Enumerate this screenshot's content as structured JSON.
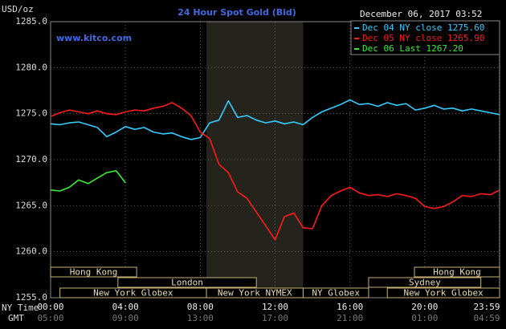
{
  "chart_data": {
    "type": "line",
    "title": "24 Hour Spot Gold (Bid)",
    "y_unit": "USD/oz",
    "website": "www.kitco.com",
    "timestamp": "December 06, 2017 03:52",
    "x_axis_label": "NY Time",
    "gmt_axis_label": "GMT",
    "x": [
      0,
      0.5,
      1,
      1.5,
      2,
      2.5,
      3,
      3.5,
      4,
      4.5,
      5,
      5.5,
      6,
      6.5,
      7,
      7.5,
      8,
      8.5,
      9,
      9.5,
      10,
      10.5,
      11,
      11.5,
      12,
      12.5,
      13,
      13.5,
      14,
      14.5,
      15,
      15.5,
      16,
      16.5,
      17,
      17.5,
      18,
      18.5,
      19,
      19.5,
      20,
      20.5,
      21,
      21.5,
      22,
      22.5,
      23,
      23.5,
      24
    ],
    "series": [
      {
        "name": "Dec 04 NY close 1275.60",
        "color": "#33ccff",
        "values": [
          1273.9,
          1273.8,
          1274.0,
          1274.1,
          1273.8,
          1273.5,
          1272.5,
          1273.0,
          1273.6,
          1273.3,
          1273.5,
          1273.0,
          1272.8,
          1272.9,
          1272.5,
          1272.2,
          1272.4,
          1274.0,
          1274.3,
          1276.4,
          1274.6,
          1274.8,
          1274.3,
          1274.0,
          1274.2,
          1273.9,
          1274.1,
          1273.8,
          1274.6,
          1275.2,
          1275.6,
          1276.0,
          1276.5,
          1276.0,
          1276.1,
          1275.8,
          1276.2,
          1275.9,
          1276.1,
          1275.4,
          1275.6,
          1275.9,
          1275.5,
          1275.6,
          1275.3,
          1275.5,
          1275.3,
          1275.1,
          1274.9
        ]
      },
      {
        "name": "Dec 05 NY close 1265.90",
        "color": "#ff1a1a",
        "values": [
          1274.7,
          1275.1,
          1275.4,
          1275.2,
          1275.0,
          1275.3,
          1275.0,
          1274.9,
          1275.2,
          1275.4,
          1275.3,
          1275.6,
          1275.8,
          1276.2,
          1275.6,
          1274.8,
          1273.0,
          1272.3,
          1269.5,
          1268.6,
          1266.5,
          1265.8,
          1264.3,
          1262.8,
          1261.3,
          1263.8,
          1264.2,
          1262.6,
          1262.5,
          1265.0,
          1266.1,
          1266.6,
          1267.0,
          1266.4,
          1266.1,
          1266.2,
          1266.0,
          1266.3,
          1266.1,
          1265.8,
          1264.9,
          1264.7,
          1264.9,
          1265.4,
          1266.1,
          1266.0,
          1266.3,
          1266.2,
          1266.7
        ]
      },
      {
        "name": "Dec 06 Last 1267.20",
        "color": "#33ee33",
        "values": [
          1266.7,
          1266.6,
          1267.0,
          1267.8,
          1267.4,
          1268.0,
          1268.6,
          1268.8,
          1267.5,
          null,
          null,
          null,
          null,
          null,
          null,
          null,
          null,
          null,
          null,
          null,
          null,
          null,
          null,
          null,
          null,
          null,
          null,
          null,
          null,
          null,
          null,
          null,
          null,
          null,
          null,
          null,
          null,
          null,
          null,
          null,
          null,
          null,
          null,
          null,
          null,
          null,
          null,
          null,
          null
        ]
      }
    ],
    "xlim": [
      0,
      24
    ],
    "ylim": [
      1255,
      1285
    ],
    "yticks": [
      {
        "value": 1255,
        "label": "1255.0"
      },
      {
        "value": 1260,
        "label": "1260.0"
      },
      {
        "value": 1265,
        "label": "1265.0"
      },
      {
        "value": 1270,
        "label": "1270.0"
      },
      {
        "value": 1275,
        "label": "1275.0"
      },
      {
        "value": 1280,
        "label": "1280.0"
      },
      {
        "value": 1285,
        "label": "1285.0"
      }
    ],
    "xticks": [
      {
        "value": 0,
        "label": "00:00"
      },
      {
        "value": 4,
        "label": "04:00"
      },
      {
        "value": 8,
        "label": "08:00"
      },
      {
        "value": 12,
        "label": "12:00"
      },
      {
        "value": 16,
        "label": "16:00"
      },
      {
        "value": 20,
        "label": "20:00"
      },
      {
        "value": 23.98,
        "label": "23:59"
      }
    ],
    "gmt_labels": [
      "05:00",
      "09:00",
      "13:00",
      "17:00",
      "21:00",
      "01:00",
      "04:59"
    ],
    "grid": true,
    "sessions": [
      [
        {
          "label": "Hong Kong",
          "start": 0,
          "end": 4.6
        },
        {
          "label": "Hong Kong",
          "start": 19.45,
          "end": 24
        }
      ],
      [
        {
          "label": "London",
          "start": 3.6,
          "end": 11.0
        },
        {
          "label": "Sydney",
          "start": 17.0,
          "end": 23.0
        }
      ],
      [
        {
          "label": "New York Globex",
          "start": 0.5,
          "end": 8.33
        },
        {
          "label": "New York NYMEX",
          "start": 8.33,
          "end": 13.5
        },
        {
          "label": "NY Globex",
          "start": 13.5,
          "end": 17.0
        },
        {
          "label": "New York Globex",
          "start": 18.0,
          "end": 24
        }
      ]
    ]
  }
}
